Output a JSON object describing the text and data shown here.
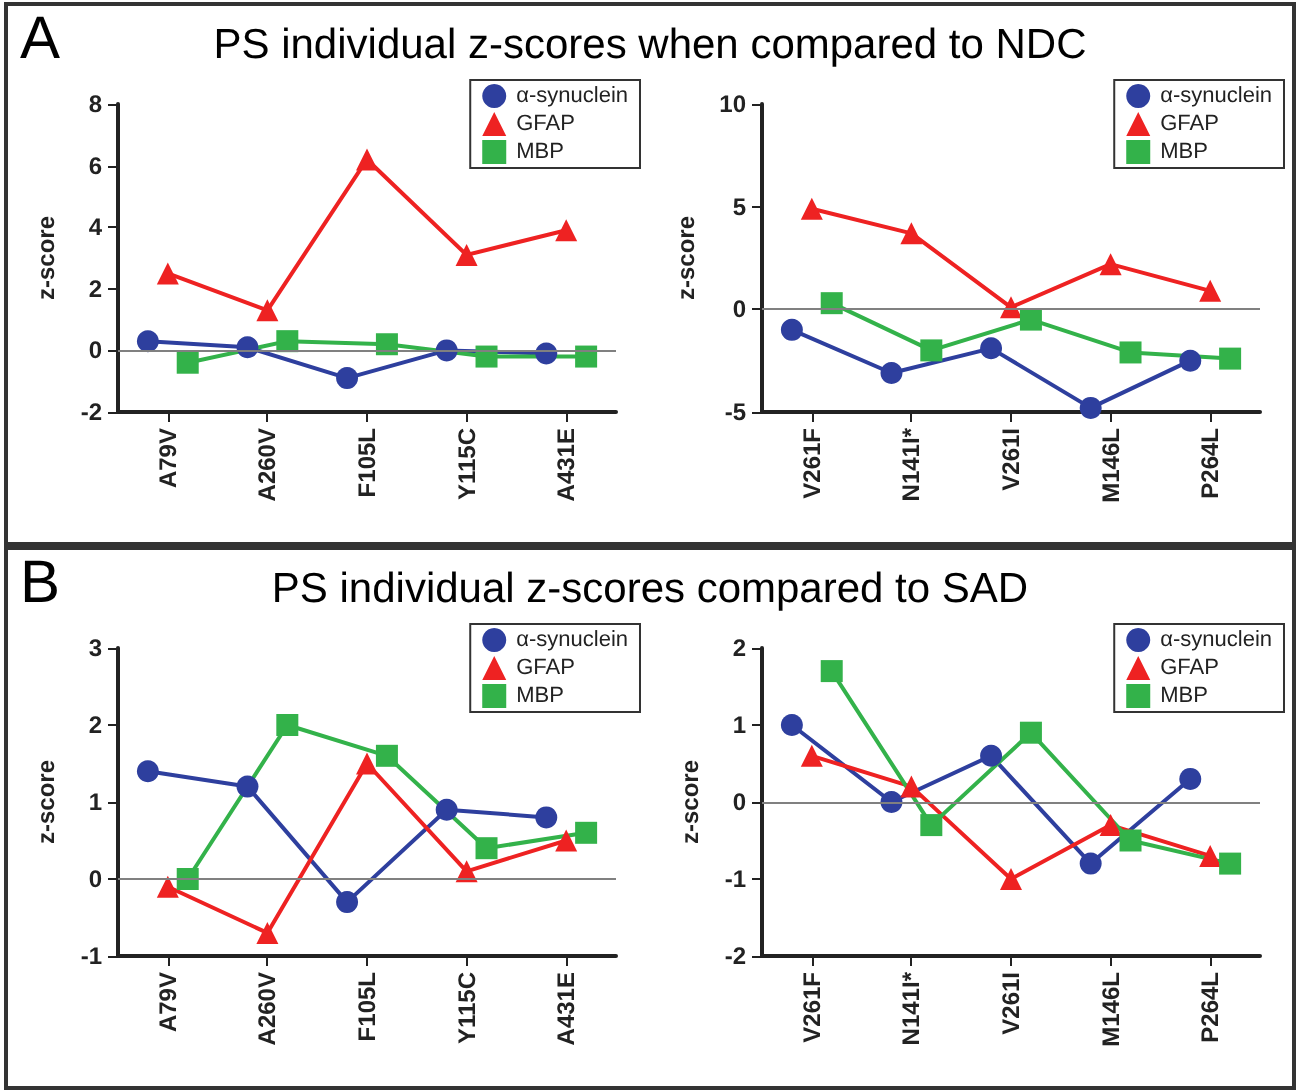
{
  "chart_data": [
    {
      "type": "line",
      "title": "PS individual z-scores when compared to NDC",
      "annotations": [
        "A"
      ],
      "ylabel": "z-score",
      "categories": [
        "A79V",
        "A260V",
        "F105L",
        "Y115C",
        "A431E"
      ],
      "ylim": [
        -2,
        8
      ],
      "yticks": [
        -2,
        0,
        2,
        4,
        6,
        8
      ],
      "grid": false,
      "legend": "top right",
      "line_style": "solid",
      "ref_lines": [
        {
          "axis": "y",
          "value": 0,
          "color": "#808080"
        }
      ],
      "series": [
        {
          "name": "α-synuclein",
          "color": "#2e3f9e",
          "marker": "circle",
          "values": [
            0.3,
            0.1,
            -0.9,
            0.0,
            -0.1
          ]
        },
        {
          "name": "GFAP",
          "color": "#ee2222",
          "marker": "triangle",
          "values": [
            2.5,
            1.3,
            6.2,
            3.1,
            3.9
          ]
        },
        {
          "name": "MBP",
          "color": "#33b24a",
          "marker": "square",
          "values": [
            -0.4,
            0.3,
            0.2,
            -0.2,
            -0.2
          ]
        }
      ]
    },
    {
      "type": "line",
      "ylabel": "z-score",
      "categories": [
        "V261F",
        "N141I*",
        "V261I",
        "M146L",
        "P264L"
      ],
      "ylim": [
        -5,
        10
      ],
      "yticks": [
        -5,
        0,
        5,
        10
      ],
      "grid": false,
      "legend": "top right",
      "line_style": "solid",
      "ref_lines": [
        {
          "axis": "y",
          "value": 0,
          "color": "#808080"
        }
      ],
      "series": [
        {
          "name": "α-synuclein",
          "color": "#2e3f9e",
          "marker": "circle",
          "values": [
            -1.0,
            -3.1,
            -1.9,
            -4.8,
            -2.5
          ]
        },
        {
          "name": "GFAP",
          "color": "#ee2222",
          "marker": "triangle",
          "values": [
            4.9,
            3.7,
            0.1,
            2.2,
            0.9
          ]
        },
        {
          "name": "MBP",
          "color": "#33b24a",
          "marker": "square",
          "values": [
            0.3,
            -2.0,
            -0.5,
            -2.1,
            -2.4
          ]
        }
      ]
    },
    {
      "type": "line",
      "title": "PS individual z-scores compared to SAD",
      "annotations": [
        "B"
      ],
      "ylabel": "z-score",
      "categories": [
        "A79V",
        "A260V",
        "F105L",
        "Y115C",
        "A431E"
      ],
      "ylim": [
        -1,
        3
      ],
      "yticks": [
        -1,
        0,
        1,
        2,
        3
      ],
      "grid": false,
      "legend": "top right",
      "line_style": "solid",
      "ref_lines": [
        {
          "axis": "y",
          "value": 0,
          "color": "#808080"
        }
      ],
      "series": [
        {
          "name": "α-synuclein",
          "color": "#2e3f9e",
          "marker": "circle",
          "values": [
            1.4,
            1.2,
            -0.3,
            0.9,
            0.8
          ]
        },
        {
          "name": "GFAP",
          "color": "#ee2222",
          "marker": "triangle",
          "values": [
            -0.1,
            -0.7,
            1.5,
            0.1,
            0.5
          ]
        },
        {
          "name": "MBP",
          "color": "#33b24a",
          "marker": "square",
          "values": [
            0.0,
            2.0,
            1.6,
            0.4,
            0.6
          ]
        }
      ]
    },
    {
      "type": "line",
      "ylabel": "z-score",
      "categories": [
        "V261F",
        "N141I*",
        "V261I",
        "M146L",
        "P264L"
      ],
      "ylim": [
        -2,
        2
      ],
      "yticks": [
        -2,
        -1,
        0,
        1,
        2
      ],
      "grid": false,
      "legend": "top right",
      "line_style": "solid",
      "ref_lines": [
        {
          "axis": "y",
          "value": 0,
          "color": "#808080"
        }
      ],
      "series": [
        {
          "name": "α-synuclein",
          "color": "#2e3f9e",
          "marker": "circle",
          "values": [
            1.0,
            0.0,
            0.6,
            -0.8,
            0.3
          ]
        },
        {
          "name": "GFAP",
          "color": "#ee2222",
          "marker": "triangle",
          "values": [
            0.6,
            0.2,
            -1.0,
            -0.3,
            -0.7
          ]
        },
        {
          "name": "MBP",
          "color": "#33b24a",
          "marker": "square",
          "values": [
            1.7,
            -0.3,
            0.9,
            -0.5,
            -0.8
          ]
        }
      ]
    }
  ]
}
